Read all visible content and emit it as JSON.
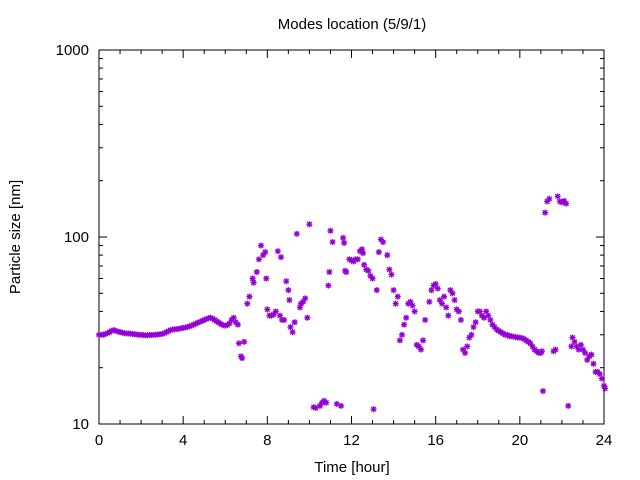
{
  "chart_data": {
    "type": "scatter",
    "title": "Modes location (5/9/1)",
    "xlabel": "Time [hour]",
    "ylabel": "Particle size [nm]",
    "xlim": [
      0,
      24
    ],
    "ylim": [
      10,
      1000
    ],
    "y_scale": "log",
    "x_ticks": [
      0,
      4,
      8,
      12,
      16,
      20,
      24
    ],
    "x_tick_labels": [
      "0",
      "4",
      "8",
      "12",
      "16",
      "20",
      "24"
    ],
    "y_ticks": [
      10,
      100,
      1000
    ],
    "y_tick_labels": [
      "10",
      "100",
      "1000"
    ],
    "grid": false,
    "legend": "none",
    "marker": "asterisk",
    "marker_color": "#9400d3",
    "series": [
      {
        "points": [
          [
            0.0,
            30
          ],
          [
            0.1,
            30
          ],
          [
            0.2,
            30
          ],
          [
            0.3,
            30.3
          ],
          [
            0.4,
            30.6
          ],
          [
            0.5,
            31
          ],
          [
            0.6,
            31.5
          ],
          [
            0.7,
            31.8
          ],
          [
            0.8,
            31.5
          ],
          [
            0.9,
            31.2
          ],
          [
            1.0,
            31
          ],
          [
            1.1,
            30.8
          ],
          [
            1.2,
            30.6
          ],
          [
            1.3,
            30.5
          ],
          [
            1.4,
            30.5
          ],
          [
            1.5,
            30.4
          ],
          [
            1.6,
            30.3
          ],
          [
            1.7,
            30.2
          ],
          [
            1.8,
            30.1
          ],
          [
            1.9,
            30
          ],
          [
            2.0,
            30
          ],
          [
            2.1,
            29.9
          ],
          [
            2.2,
            29.8
          ],
          [
            2.3,
            29.8
          ],
          [
            2.4,
            29.9
          ],
          [
            2.5,
            29.9
          ],
          [
            2.6,
            30
          ],
          [
            2.7,
            30
          ],
          [
            2.8,
            30.1
          ],
          [
            2.9,
            30.2
          ],
          [
            3.0,
            30.3
          ],
          [
            3.1,
            30.6
          ],
          [
            3.2,
            31
          ],
          [
            3.3,
            31.4
          ],
          [
            3.4,
            31.8
          ],
          [
            3.5,
            32
          ],
          [
            3.6,
            32.1
          ],
          [
            3.7,
            32.2
          ],
          [
            3.8,
            32.3
          ],
          [
            3.9,
            32.5
          ],
          [
            4.0,
            32.7
          ],
          [
            4.1,
            32.8
          ],
          [
            4.2,
            33
          ],
          [
            4.3,
            33.3
          ],
          [
            4.4,
            33.6
          ],
          [
            4.5,
            34
          ],
          [
            4.6,
            34.4
          ],
          [
            4.7,
            34.8
          ],
          [
            4.8,
            35.2
          ],
          [
            4.9,
            35.6
          ],
          [
            5.0,
            36
          ],
          [
            5.1,
            36.4
          ],
          [
            5.2,
            36.8
          ],
          [
            5.3,
            37
          ],
          [
            5.4,
            36.6
          ],
          [
            5.5,
            36
          ],
          [
            5.6,
            35.4
          ],
          [
            5.7,
            34.8
          ],
          [
            5.8,
            34.2
          ],
          [
            5.9,
            33.8
          ],
          [
            6.0,
            33.6
          ],
          [
            6.1,
            33.8
          ],
          [
            6.2,
            34.5
          ],
          [
            6.3,
            36
          ],
          [
            6.4,
            37
          ],
          [
            6.5,
            35
          ],
          [
            6.6,
            34
          ],
          [
            6.65,
            27
          ],
          [
            6.75,
            23
          ],
          [
            6.8,
            22.5
          ],
          [
            6.9,
            27.5
          ],
          [
            7.05,
            44
          ],
          [
            7.15,
            48
          ],
          [
            7.3,
            60
          ],
          [
            7.35,
            57
          ],
          [
            7.5,
            65
          ],
          [
            7.6,
            76
          ],
          [
            7.7,
            90
          ],
          [
            7.8,
            80
          ],
          [
            7.9,
            83
          ],
          [
            7.95,
            60
          ],
          [
            8.0,
            41
          ],
          [
            8.1,
            38
          ],
          [
            8.2,
            38
          ],
          [
            8.3,
            38.5
          ],
          [
            8.4,
            40
          ],
          [
            8.5,
            84
          ],
          [
            8.6,
            38
          ],
          [
            8.65,
            78
          ],
          [
            8.7,
            36
          ],
          [
            8.8,
            36
          ],
          [
            8.9,
            58
          ],
          [
            9.0,
            52
          ],
          [
            9.05,
            46
          ],
          [
            9.1,
            33
          ],
          [
            9.2,
            31
          ],
          [
            9.3,
            35
          ],
          [
            9.4,
            104
          ],
          [
            9.55,
            42
          ],
          [
            9.6,
            44
          ],
          [
            9.7,
            45
          ],
          [
            9.8,
            47
          ],
          [
            9.9,
            37
          ],
          [
            10.0,
            117
          ],
          [
            10.2,
            12.3
          ],
          [
            10.3,
            12.2
          ],
          [
            10.5,
            12.5
          ],
          [
            10.6,
            13
          ],
          [
            10.7,
            13.3
          ],
          [
            10.8,
            13
          ],
          [
            10.9,
            55
          ],
          [
            10.95,
            65
          ],
          [
            11.0,
            108
          ],
          [
            11.1,
            94
          ],
          [
            11.3,
            12.8
          ],
          [
            11.5,
            12.5
          ],
          [
            11.6,
            99
          ],
          [
            11.65,
            93
          ],
          [
            11.7,
            66
          ],
          [
            11.75,
            65
          ],
          [
            11.9,
            76
          ],
          [
            12.0,
            75
          ],
          [
            12.1,
            74
          ],
          [
            12.2,
            76
          ],
          [
            12.3,
            76
          ],
          [
            12.4,
            84
          ],
          [
            12.5,
            86
          ],
          [
            12.55,
            82
          ],
          [
            12.6,
            71
          ],
          [
            12.7,
            67
          ],
          [
            12.8,
            66
          ],
          [
            12.9,
            62
          ],
          [
            13.0,
            60
          ],
          [
            13.05,
            12
          ],
          [
            13.2,
            52
          ],
          [
            13.3,
            83
          ],
          [
            13.4,
            97
          ],
          [
            13.5,
            94
          ],
          [
            13.7,
            80
          ],
          [
            13.8,
            67
          ],
          [
            13.9,
            63
          ],
          [
            14.0,
            52
          ],
          [
            14.1,
            44
          ],
          [
            14.2,
            48
          ],
          [
            14.3,
            28
          ],
          [
            14.4,
            30
          ],
          [
            14.5,
            34
          ],
          [
            14.6,
            37
          ],
          [
            14.7,
            44
          ],
          [
            14.8,
            45
          ],
          [
            14.9,
            43
          ],
          [
            15.0,
            40
          ],
          [
            15.1,
            26.5
          ],
          [
            15.2,
            26
          ],
          [
            15.3,
            25
          ],
          [
            15.4,
            28
          ],
          [
            15.5,
            36
          ],
          [
            15.7,
            45
          ],
          [
            15.8,
            52
          ],
          [
            15.9,
            55
          ],
          [
            16.0,
            56
          ],
          [
            16.1,
            53
          ],
          [
            16.2,
            46
          ],
          [
            16.3,
            44
          ],
          [
            16.4,
            48
          ],
          [
            16.5,
            42
          ],
          [
            16.6,
            38
          ],
          [
            16.7,
            52
          ],
          [
            16.8,
            50
          ],
          [
            16.9,
            46
          ],
          [
            17.0,
            41
          ],
          [
            17.1,
            40
          ],
          [
            17.2,
            36
          ],
          [
            17.3,
            25
          ],
          [
            17.4,
            24
          ],
          [
            17.5,
            26
          ],
          [
            17.6,
            29
          ],
          [
            17.7,
            30
          ],
          [
            17.8,
            33
          ],
          [
            17.9,
            35
          ],
          [
            18.0,
            40
          ],
          [
            18.1,
            40
          ],
          [
            18.2,
            38
          ],
          [
            18.3,
            37
          ],
          [
            18.4,
            40
          ],
          [
            18.5,
            38
          ],
          [
            18.6,
            36
          ],
          [
            18.7,
            34
          ],
          [
            18.8,
            33
          ],
          [
            18.9,
            32
          ],
          [
            19.0,
            31.5
          ],
          [
            19.1,
            31
          ],
          [
            19.2,
            30.5
          ],
          [
            19.3,
            30
          ],
          [
            19.4,
            30
          ],
          [
            19.5,
            29.5
          ],
          [
            19.6,
            29.5
          ],
          [
            19.7,
            29.3
          ],
          [
            19.8,
            29.2
          ],
          [
            19.9,
            29
          ],
          [
            20.0,
            29
          ],
          [
            20.1,
            28.8
          ],
          [
            20.2,
            28.5
          ],
          [
            20.3,
            28
          ],
          [
            20.4,
            27.5
          ],
          [
            20.5,
            27
          ],
          [
            20.6,
            26
          ],
          [
            20.7,
            25
          ],
          [
            20.8,
            24.5
          ],
          [
            20.9,
            24
          ],
          [
            21.0,
            24
          ],
          [
            21.05,
            24.5
          ],
          [
            21.1,
            15
          ],
          [
            21.2,
            135
          ],
          [
            21.3,
            155
          ],
          [
            21.4,
            160
          ],
          [
            21.6,
            24.5
          ],
          [
            21.7,
            25
          ],
          [
            21.8,
            165
          ],
          [
            21.9,
            155
          ],
          [
            22.0,
            153
          ],
          [
            22.1,
            156
          ],
          [
            22.2,
            151
          ],
          [
            22.3,
            12.5
          ],
          [
            22.45,
            26
          ],
          [
            22.5,
            29
          ],
          [
            22.6,
            27.5
          ],
          [
            22.7,
            26
          ],
          [
            22.8,
            25
          ],
          [
            22.9,
            26.5
          ],
          [
            23.0,
            25
          ],
          [
            23.1,
            24
          ],
          [
            23.2,
            22
          ],
          [
            23.3,
            23
          ],
          [
            23.4,
            23.5
          ],
          [
            23.5,
            21
          ],
          [
            23.6,
            19
          ],
          [
            23.7,
            19
          ],
          [
            23.8,
            18.5
          ],
          [
            23.9,
            17.5
          ],
          [
            24.0,
            16
          ],
          [
            24.05,
            15.5
          ]
        ]
      }
    ]
  }
}
